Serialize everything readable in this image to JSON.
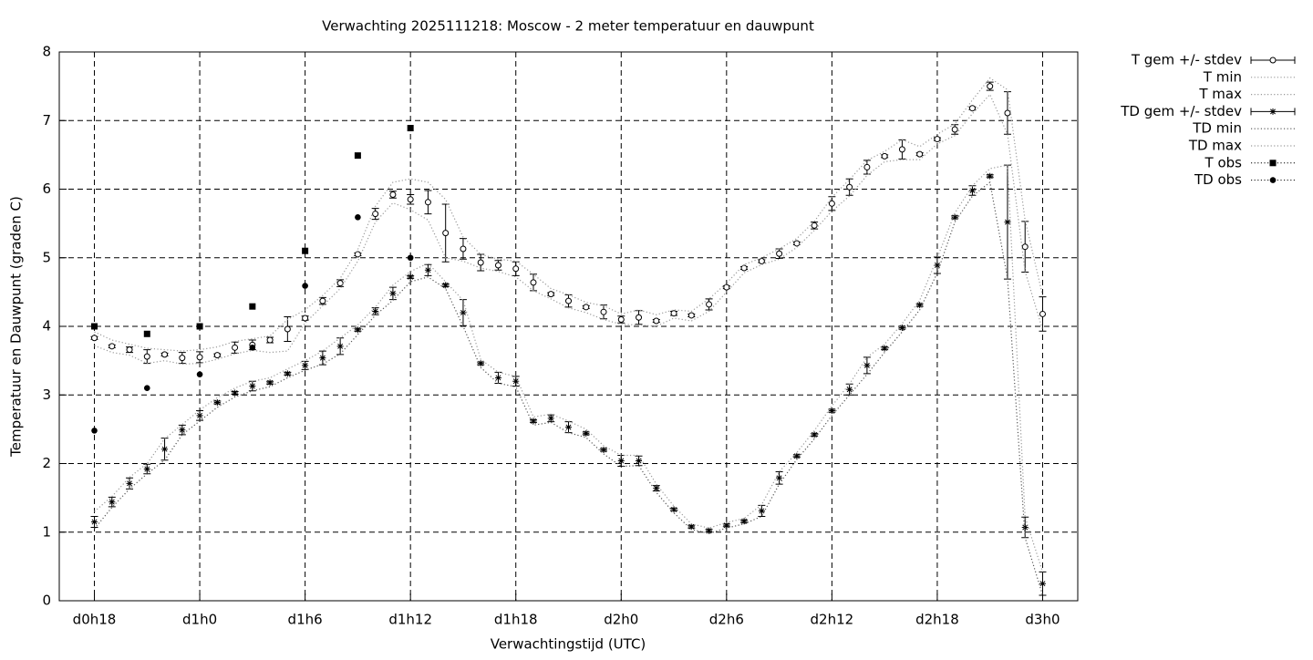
{
  "chart_data": {
    "type": "line",
    "title": "Verwachting 2025111218: Moscow - 2 meter temperatuur en dauwpunt",
    "x_label": "Verwachtingstijd (UTC)",
    "y_label": "Temperatuur en Dauwpunt (graden C)",
    "xlim": [
      16,
      74
    ],
    "ylim": [
      0,
      8
    ],
    "xticks": [
      {
        "value": 18,
        "label": "d0h18"
      },
      {
        "value": 24,
        "label": "d1h0"
      },
      {
        "value": 30,
        "label": "d1h6"
      },
      {
        "value": 36,
        "label": "d1h12"
      },
      {
        "value": 42,
        "label": "d1h18"
      },
      {
        "value": 48,
        "label": "d2h0"
      },
      {
        "value": 54,
        "label": "d2h6"
      },
      {
        "value": 60,
        "label": "d2h12"
      },
      {
        "value": 66,
        "label": "d2h18"
      },
      {
        "value": 72,
        "label": "d3h0"
      }
    ],
    "yticks": [
      0,
      1,
      2,
      3,
      4,
      5,
      6,
      7,
      8
    ],
    "grid": true,
    "legend": "outside-right",
    "series": [
      {
        "name": "T gem +/- stdev",
        "style": "errorbars",
        "marker": "open-circle",
        "color": "#000000",
        "x": [
          18,
          19,
          20,
          21,
          22,
          23,
          24,
          25,
          26,
          27,
          28,
          29,
          30,
          31,
          32,
          33,
          34,
          35,
          36,
          37,
          38,
          39,
          40,
          41,
          42,
          43,
          44,
          45,
          46,
          47,
          48,
          49,
          50,
          51,
          52,
          53,
          54,
          55,
          56,
          57,
          58,
          59,
          60,
          61,
          62,
          63,
          64,
          65,
          66,
          67,
          68,
          69,
          70,
          71,
          72
        ],
        "values": [
          3.83,
          3.71,
          3.66,
          3.56,
          3.59,
          3.54,
          3.55,
          3.58,
          3.69,
          3.73,
          3.8,
          3.96,
          4.12,
          4.37,
          4.63,
          5.05,
          5.64,
          5.92,
          5.85,
          5.81,
          5.36,
          5.13,
          4.93,
          4.89,
          4.84,
          4.64,
          4.47,
          4.37,
          4.28,
          4.21,
          4.1,
          4.13,
          4.08,
          4.19,
          4.16,
          4.32,
          4.57,
          4.85,
          4.95,
          5.06,
          5.21,
          5.47,
          5.79,
          6.03,
          6.32,
          6.48,
          6.58,
          6.51,
          6.73,
          6.87,
          7.18,
          7.5,
          7.11,
          5.16,
          4.18
        ],
        "errors": [
          0.02,
          0.02,
          0.04,
          0.1,
          0.02,
          0.08,
          0.08,
          0.02,
          0.08,
          0.07,
          0.04,
          0.18,
          0.03,
          0.05,
          0.05,
          0.02,
          0.08,
          0.05,
          0.07,
          0.17,
          0.42,
          0.15,
          0.12,
          0.07,
          0.1,
          0.12,
          0.02,
          0.09,
          0.02,
          0.1,
          0.05,
          0.1,
          0.02,
          0.03,
          0.02,
          0.08,
          0.02,
          0.02,
          0.02,
          0.07,
          0.02,
          0.05,
          0.1,
          0.12,
          0.1,
          0.02,
          0.14,
          0.02,
          0.02,
          0.07,
          0.02,
          0.06,
          0.31,
          0.37,
          0.25
        ]
      },
      {
        "name": "T min",
        "style": "lines",
        "color": "#999999",
        "x": [
          18,
          19,
          20,
          21,
          22,
          23,
          24,
          25,
          26,
          27,
          28,
          29,
          30,
          31,
          32,
          33,
          34,
          35,
          36,
          37,
          38,
          39,
          40,
          41,
          42,
          43,
          44,
          45,
          46,
          47,
          48,
          49,
          50,
          51,
          52,
          53,
          54,
          55,
          56,
          57,
          58,
          59,
          60,
          61,
          62,
          63,
          64,
          65,
          66,
          67,
          68,
          69,
          70,
          71,
          72
        ],
        "values": [
          3.72,
          3.62,
          3.58,
          3.46,
          3.5,
          3.45,
          3.46,
          3.52,
          3.6,
          3.65,
          3.62,
          3.64,
          4.05,
          4.3,
          4.55,
          4.95,
          5.52,
          5.8,
          5.7,
          5.55,
          5.0,
          4.95,
          4.85,
          4.8,
          4.72,
          4.52,
          4.4,
          4.27,
          4.2,
          4.1,
          4.03,
          4.02,
          4.0,
          4.12,
          4.08,
          4.22,
          4.5,
          4.78,
          4.9,
          4.98,
          5.15,
          5.4,
          5.68,
          5.9,
          6.2,
          6.4,
          6.43,
          6.43,
          6.66,
          6.78,
          7.1,
          7.38,
          6.8,
          4.8,
          3.95
        ]
      },
      {
        "name": "T max",
        "style": "lines",
        "color": "#999999",
        "x": [
          18,
          19,
          20,
          21,
          22,
          23,
          24,
          25,
          26,
          27,
          28,
          29,
          30,
          31,
          32,
          33,
          34,
          35,
          36,
          37,
          38,
          39,
          40,
          41,
          42,
          43,
          44,
          45,
          46,
          47,
          48,
          49,
          50,
          51,
          52,
          53,
          54,
          55,
          56,
          57,
          58,
          59,
          60,
          61,
          62,
          63,
          64,
          65,
          66,
          67,
          68,
          69,
          70,
          71,
          72
        ],
        "values": [
          3.92,
          3.8,
          3.74,
          3.68,
          3.66,
          3.64,
          3.66,
          3.7,
          3.78,
          3.82,
          3.86,
          4.1,
          4.24,
          4.45,
          4.7,
          5.12,
          5.75,
          6.1,
          6.15,
          6.1,
          5.85,
          5.3,
          5.05,
          4.98,
          4.95,
          4.76,
          4.55,
          4.46,
          4.35,
          4.3,
          4.18,
          4.24,
          4.17,
          4.24,
          4.22,
          4.4,
          4.63,
          4.9,
          5.0,
          5.13,
          5.28,
          5.53,
          5.88,
          6.14,
          6.42,
          6.55,
          6.72,
          6.62,
          6.8,
          6.95,
          7.3,
          7.62,
          7.45,
          5.55,
          4.45
        ]
      },
      {
        "name": "TD gem +/- stdev",
        "style": "errorbars",
        "marker": "asterisk",
        "color": "#000000",
        "x": [
          18,
          19,
          20,
          21,
          22,
          23,
          24,
          25,
          26,
          27,
          28,
          29,
          30,
          31,
          32,
          33,
          34,
          35,
          36,
          37,
          38,
          39,
          40,
          41,
          42,
          43,
          44,
          45,
          46,
          47,
          48,
          49,
          50,
          51,
          52,
          53,
          54,
          55,
          56,
          57,
          58,
          59,
          60,
          61,
          62,
          63,
          64,
          65,
          66,
          67,
          68,
          69,
          70,
          71,
          72
        ],
        "values": [
          1.15,
          1.44,
          1.71,
          1.92,
          2.21,
          2.49,
          2.7,
          2.89,
          3.03,
          3.13,
          3.18,
          3.31,
          3.43,
          3.54,
          3.71,
          3.95,
          4.22,
          4.48,
          4.72,
          4.82,
          4.6,
          4.2,
          3.46,
          3.25,
          3.2,
          2.62,
          2.66,
          2.53,
          2.44,
          2.2,
          2.04,
          2.04,
          1.64,
          1.33,
          1.08,
          1.02,
          1.1,
          1.16,
          1.31,
          1.79,
          2.11,
          2.42,
          2.77,
          3.08,
          3.43,
          3.68,
          3.98,
          4.31,
          4.89,
          5.59,
          5.98,
          6.19,
          5.52,
          1.07,
          0.25
        ],
        "errors": [
          0.08,
          0.07,
          0.08,
          0.07,
          0.16,
          0.07,
          0.07,
          0.02,
          0.02,
          0.07,
          0.02,
          0.02,
          0.06,
          0.1,
          0.12,
          0.02,
          0.05,
          0.09,
          0.02,
          0.08,
          0.02,
          0.19,
          0.02,
          0.08,
          0.07,
          0.02,
          0.05,
          0.08,
          0.02,
          0.02,
          0.08,
          0.07,
          0.04,
          0.02,
          0.02,
          0.02,
          0.02,
          0.02,
          0.08,
          0.09,
          0.02,
          0.02,
          0.02,
          0.08,
          0.12,
          0.02,
          0.02,
          0.02,
          0.12,
          0.02,
          0.07,
          0.02,
          0.83,
          0.15,
          0.17
        ]
      },
      {
        "name": "TD min",
        "style": "lines",
        "color": "#555555",
        "x": [
          18,
          19,
          20,
          21,
          22,
          23,
          24,
          25,
          26,
          27,
          28,
          29,
          30,
          31,
          32,
          33,
          34,
          35,
          36,
          37,
          38,
          39,
          40,
          41,
          42,
          43,
          44,
          45,
          46,
          47,
          48,
          49,
          50,
          51,
          52,
          53,
          54,
          55,
          56,
          57,
          58,
          59,
          60,
          61,
          62,
          63,
          64,
          65,
          66,
          67,
          68,
          69,
          70,
          71,
          72
        ],
        "values": [
          1.05,
          1.36,
          1.63,
          1.85,
          2.05,
          2.42,
          2.62,
          2.82,
          2.97,
          3.06,
          3.12,
          3.25,
          3.36,
          3.45,
          3.6,
          3.88,
          4.16,
          4.38,
          4.65,
          4.72,
          4.55,
          4.0,
          3.4,
          3.17,
          3.12,
          2.56,
          2.6,
          2.45,
          2.38,
          2.14,
          1.96,
          1.97,
          1.58,
          1.28,
          1.04,
          0.98,
          1.06,
          1.12,
          1.23,
          1.7,
          2.06,
          2.36,
          2.7,
          3.0,
          3.3,
          3.62,
          3.92,
          4.24,
          4.78,
          5.52,
          5.9,
          6.1,
          4.7,
          0.92,
          0.08
        ]
      },
      {
        "name": "TD max",
        "style": "lines",
        "color": "#999999",
        "x": [
          18,
          19,
          20,
          21,
          22,
          23,
          24,
          25,
          26,
          27,
          28,
          29,
          30,
          31,
          32,
          33,
          34,
          35,
          36,
          37,
          38,
          39,
          40,
          41,
          42,
          43,
          44,
          45,
          46,
          47,
          48,
          49,
          50,
          51,
          52,
          53,
          54,
          55,
          56,
          57,
          58,
          59,
          60,
          61,
          62,
          63,
          64,
          65,
          66,
          67,
          68,
          69,
          70,
          71,
          72
        ],
        "values": [
          1.3,
          1.52,
          1.8,
          2.0,
          2.36,
          2.57,
          2.78,
          2.96,
          3.1,
          3.2,
          3.25,
          3.38,
          3.5,
          3.64,
          3.83,
          4.02,
          4.28,
          4.6,
          4.8,
          4.92,
          4.65,
          4.38,
          3.52,
          3.33,
          3.27,
          2.68,
          2.72,
          2.62,
          2.5,
          2.26,
          2.12,
          2.12,
          1.7,
          1.38,
          1.12,
          1.06,
          1.14,
          1.2,
          1.4,
          1.88,
          2.16,
          2.48,
          2.84,
          3.16,
          3.55,
          3.74,
          4.04,
          4.38,
          5.0,
          5.65,
          6.05,
          6.3,
          6.35,
          1.22,
          0.42
        ]
      },
      {
        "name": "T obs",
        "style": "points",
        "marker": "square",
        "color": "#000000",
        "x": [
          18,
          21,
          24,
          27,
          30,
          33,
          36
        ],
        "values": [
          4.0,
          3.89,
          4.0,
          4.29,
          5.1,
          6.49,
          6.89
        ]
      },
      {
        "name": "TD obs",
        "style": "points",
        "marker": "dot",
        "color": "#000000",
        "x": [
          18,
          21,
          24,
          27,
          30,
          33,
          36
        ],
        "values": [
          2.48,
          3.1,
          3.3,
          3.69,
          4.59,
          5.59,
          5.0
        ]
      }
    ]
  }
}
